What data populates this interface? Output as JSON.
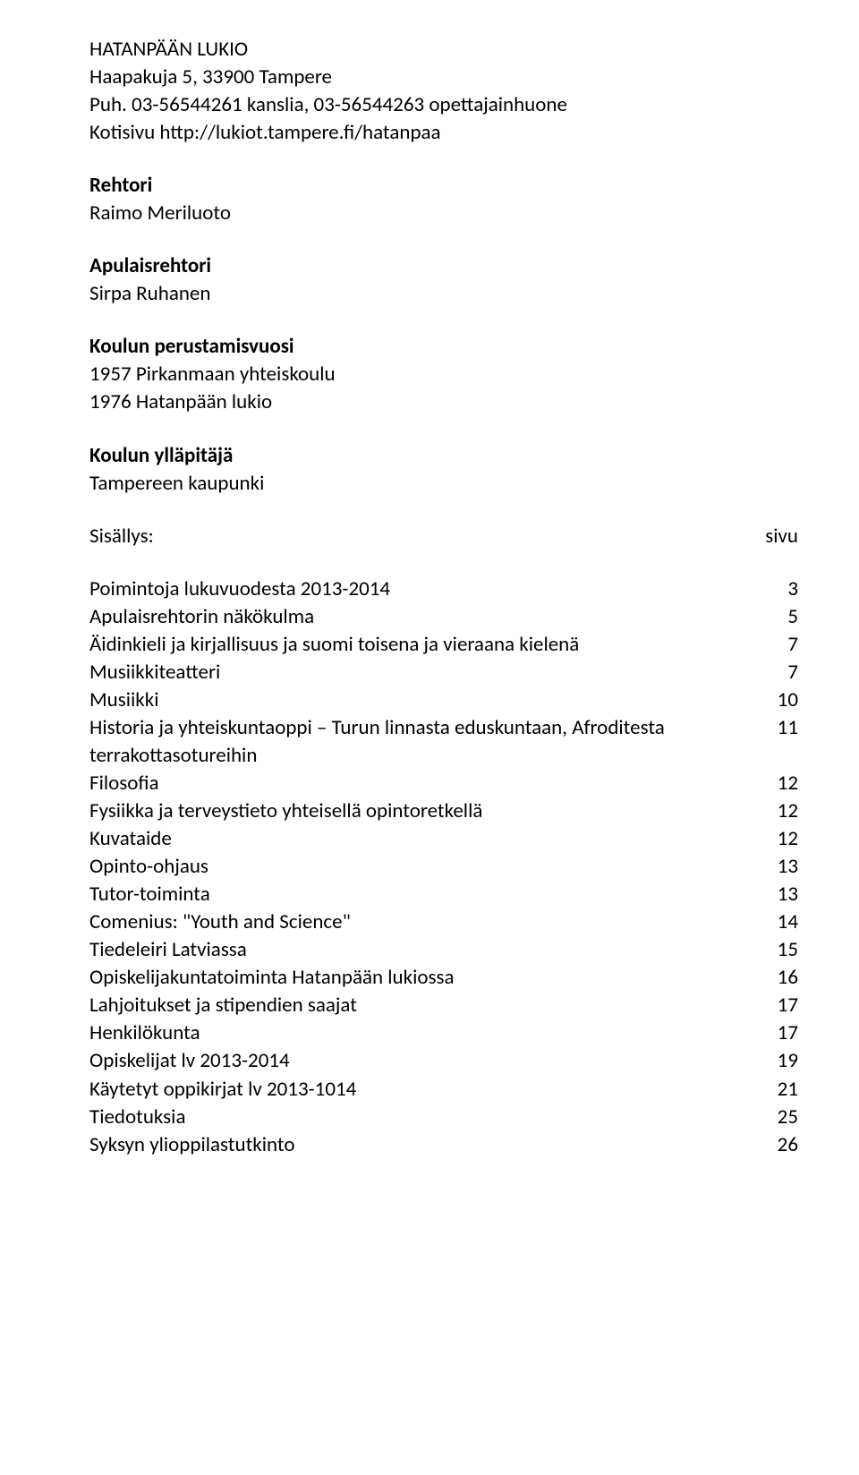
{
  "header": {
    "school_name": "HATANPÄÄN LUKIO",
    "address": "Haapakuja 5, 33900 Tampere",
    "phone": "Puh. 03-56544261 kanslia, 03-56544263 opettajainhuone",
    "website": "Kotisivu http://lukiot.tampere.fi/hatanpaa"
  },
  "rector": {
    "title": "Rehtori",
    "name": "Raimo Meriluoto"
  },
  "vice_rector": {
    "title": "Apulaisrehtori",
    "name": "Sirpa Ruhanen"
  },
  "founding": {
    "title": "Koulun perustamisvuosi",
    "line1": "1957 Pirkanmaan yhteiskoulu",
    "line2": "1976 Hatanpään lukio"
  },
  "maintainer": {
    "title": "Koulun ylläpitäjä",
    "name": "Tampereen kaupunki"
  },
  "toc": {
    "heading_label": "Sisällys:",
    "heading_page": "sivu",
    "items": [
      {
        "label": "Poimintoja lukuvuodesta 2013-2014",
        "page": "3"
      },
      {
        "label": "Apulaisrehtorin näkökulma",
        "page": "5"
      },
      {
        "label": "Äidinkieli ja kirjallisuus ja suomi toisena ja vieraana kielenä",
        "page": "7"
      },
      {
        "label": "Musiikkiteatteri",
        "page": "7"
      },
      {
        "label": "Musiikki",
        "page": "10"
      },
      {
        "label": "Historia ja yhteiskuntaoppi – Turun linnasta eduskuntaan, Afroditesta terrakottasotureihin",
        "page": "11"
      },
      {
        "label": "Filosofia",
        "page": "12"
      },
      {
        "label": "Fysiikka ja terveystieto yhteisellä opintoretkellä",
        "page": "12"
      },
      {
        "label": "Kuvataide",
        "page": "12"
      },
      {
        "label": "Opinto-ohjaus",
        "page": "13"
      },
      {
        "label": "Tutor-toiminta",
        "page": "13"
      },
      {
        "label": "Comenius: \"Youth and Science\"",
        "page": "14"
      },
      {
        "label": "Tiedeleiri Latviassa",
        "page": "15"
      },
      {
        "label": "Opiskelijakuntatoiminta Hatanpään lukiossa",
        "page": "16"
      },
      {
        "label": "Lahjoitukset ja stipendien saajat",
        "page": "17"
      },
      {
        "label": "Henkilökunta",
        "page": "17"
      },
      {
        "label": "Opiskelijat lv 2013-2014",
        "page": "19"
      },
      {
        "label": "Käytetyt oppikirjat lv 2013-1014",
        "page": "21"
      },
      {
        "label": "Tiedotuksia",
        "page": "25"
      },
      {
        "label": "Syksyn ylioppilastutkinto",
        "page": "26"
      }
    ]
  }
}
